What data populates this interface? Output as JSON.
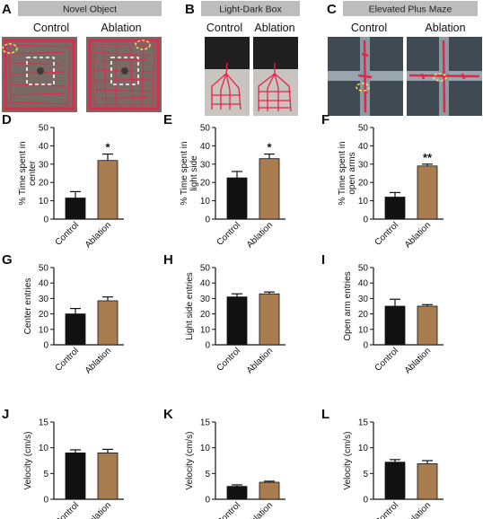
{
  "colors": {
    "control_bar": "#111111",
    "ablation_bar": "#a87c4f",
    "banner_bg": "#bdbdbd",
    "track": "#e8234a"
  },
  "top": {
    "panels": [
      {
        "letter": "A",
        "banner": "Novel Object",
        "groups": [
          "Control",
          "Ablation"
        ]
      },
      {
        "letter": "B",
        "banner": "Light-Dark Box",
        "groups": [
          "Control",
          "Ablation"
        ]
      },
      {
        "letter": "C",
        "banner": "Elevated Plus Maze",
        "groups": [
          "Control",
          "Ablation"
        ]
      }
    ]
  },
  "chart_data": [
    {
      "letter": "D",
      "type": "bar",
      "categories": [
        "Control",
        "Ablation"
      ],
      "values": [
        11.5,
        32
      ],
      "errors": [
        3.5,
        3.5
      ],
      "ylabel": "% Time spent in center",
      "ylim": [
        0,
        50
      ],
      "yticks": [
        0,
        10,
        20,
        30,
        40,
        50
      ],
      "significance": [
        "",
        "*"
      ]
    },
    {
      "letter": "E",
      "type": "bar",
      "categories": [
        "Control",
        "Ablation"
      ],
      "values": [
        22.5,
        33
      ],
      "errors": [
        3.5,
        2.5
      ],
      "ylabel": "% Time spent in light side",
      "ylim": [
        0,
        50
      ],
      "yticks": [
        0,
        10,
        20,
        30,
        40,
        50
      ],
      "significance": [
        "",
        "*"
      ]
    },
    {
      "letter": "F",
      "type": "bar",
      "categories": [
        "Control",
        "Ablation"
      ],
      "values": [
        12,
        29
      ],
      "errors": [
        2.5,
        1.0
      ],
      "ylabel": "% Time spent in open arms",
      "ylim": [
        0,
        50
      ],
      "yticks": [
        0,
        10,
        20,
        30,
        40,
        50
      ],
      "significance": [
        "",
        "**"
      ]
    },
    {
      "letter": "G",
      "type": "bar",
      "categories": [
        "Control",
        "Ablation"
      ],
      "values": [
        20,
        28.5
      ],
      "errors": [
        3.5,
        2.5
      ],
      "ylabel": "Center entries",
      "ylim": [
        0,
        50
      ],
      "yticks": [
        0,
        10,
        20,
        30,
        40,
        50
      ],
      "significance": [
        "",
        ""
      ]
    },
    {
      "letter": "H",
      "type": "bar",
      "categories": [
        "Control",
        "Ablation"
      ],
      "values": [
        31,
        33
      ],
      "errors": [
        2.0,
        1.2
      ],
      "ylabel": "Light side entries",
      "ylim": [
        0,
        50
      ],
      "yticks": [
        0,
        10,
        20,
        30,
        40,
        50
      ],
      "significance": [
        "",
        ""
      ]
    },
    {
      "letter": "I",
      "type": "bar",
      "categories": [
        "Control",
        "Ablation"
      ],
      "values": [
        25,
        25
      ],
      "errors": [
        4.5,
        1.0
      ],
      "ylabel": "Open arm entries",
      "ylim": [
        0,
        50
      ],
      "yticks": [
        0,
        10,
        20,
        30,
        40,
        50
      ],
      "significance": [
        "",
        ""
      ]
    },
    {
      "letter": "J",
      "type": "bar",
      "categories": [
        "Control",
        "Ablation"
      ],
      "values": [
        9.0,
        9.0
      ],
      "errors": [
        0.6,
        0.7
      ],
      "ylabel": "Velocity (cm/s)",
      "ylim": [
        0,
        15
      ],
      "yticks": [
        0,
        5,
        10,
        15
      ],
      "significance": [
        "",
        ""
      ]
    },
    {
      "letter": "K",
      "type": "bar",
      "categories": [
        "Control",
        "Ablation"
      ],
      "values": [
        2.5,
        3.3
      ],
      "errors": [
        0.3,
        0.2
      ],
      "ylabel": "Velocity (cm/s)",
      "ylim": [
        0,
        15
      ],
      "yticks": [
        0,
        5,
        10,
        15
      ],
      "significance": [
        "",
        ""
      ]
    },
    {
      "letter": "L",
      "type": "bar",
      "categories": [
        "Control",
        "Ablation"
      ],
      "values": [
        7.2,
        6.9
      ],
      "errors": [
        0.5,
        0.6
      ],
      "ylabel": "Velocity (cm/s)",
      "ylim": [
        0,
        15
      ],
      "yticks": [
        0,
        5,
        10,
        15
      ],
      "significance": [
        "",
        ""
      ]
    }
  ]
}
